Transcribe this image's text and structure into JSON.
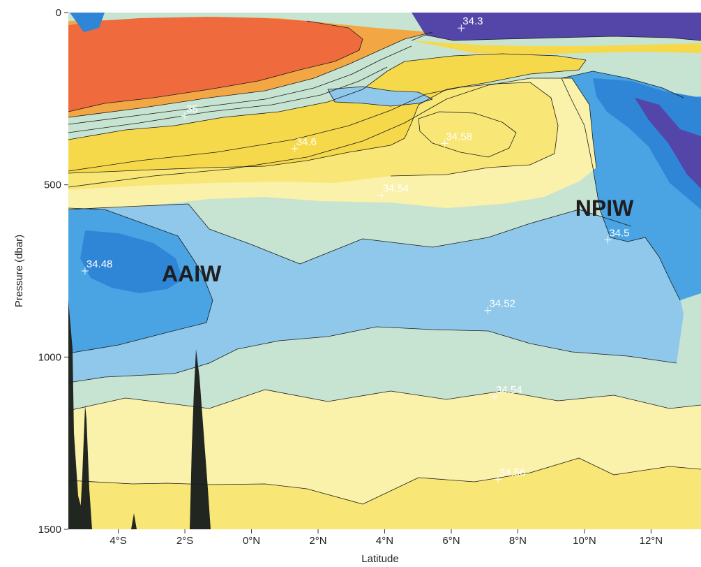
{
  "chart_data": {
    "type": "heatmap",
    "title": "",
    "xlabel": "Latitude",
    "ylabel": "Pressure (dbar)",
    "xlim": [
      -5.5,
      13.5
    ],
    "ylim": [
      0,
      1500
    ],
    "y_reversed": true,
    "x_ticks": [
      {
        "value": -4,
        "label": "4°S"
      },
      {
        "value": -2,
        "label": "2°S"
      },
      {
        "value": 0,
        "label": "0°N"
      },
      {
        "value": 2,
        "label": "2°N"
      },
      {
        "value": 4,
        "label": "4°N"
      },
      {
        "value": 6,
        "label": "6°N"
      },
      {
        "value": 8,
        "label": "8°N"
      },
      {
        "value": 10,
        "label": "10°N"
      },
      {
        "value": 12,
        "label": "12°N"
      }
    ],
    "y_ticks": [
      {
        "value": 0,
        "label": "0"
      },
      {
        "value": 500,
        "label": "500"
      },
      {
        "value": 1000,
        "label": "1000"
      },
      {
        "value": 1500,
        "label": "1500"
      }
    ],
    "contour_labels": [
      {
        "text": "34.3",
        "x": 6.3,
        "y": 45
      },
      {
        "text": "35",
        "x": -2.0,
        "y": 300
      },
      {
        "text": "34.6",
        "x": 1.3,
        "y": 395
      },
      {
        "text": "34.58",
        "x": 5.8,
        "y": 380
      },
      {
        "text": "34.54",
        "x": 3.9,
        "y": 530
      },
      {
        "text": "34.5",
        "x": 10.7,
        "y": 660
      },
      {
        "text": "34.48",
        "x": -5.0,
        "y": 750
      },
      {
        "text": "34.52",
        "x": 7.1,
        "y": 865
      },
      {
        "text": "34.54",
        "x": 7.3,
        "y": 1115
      },
      {
        "text": "34.56",
        "x": 7.4,
        "y": 1355
      }
    ],
    "annotations": [
      {
        "text": "AAIW",
        "x": -1.8,
        "y": 780
      },
      {
        "text": "NPIW",
        "x": 10.6,
        "y": 590
      }
    ],
    "colors": {
      "salinity_35": "#ef6a3c",
      "salinity_34_8": "#f3a744",
      "salinity_34_6": "#f6d94b",
      "salinity_34_58": "#f8e776",
      "salinity_34_56": "#faf1aa",
      "salinity_34_54": "#c7e4d2",
      "salinity_34_52": "#8fc8ea",
      "salinity_34_5": "#4aa4e4",
      "salinity_34_48": "#2f86d6",
      "salinity_34_3": "#5346a8",
      "topography": "#222621",
      "contour_line": "#1a1a1a"
    },
    "grid": false,
    "legend": "none"
  }
}
